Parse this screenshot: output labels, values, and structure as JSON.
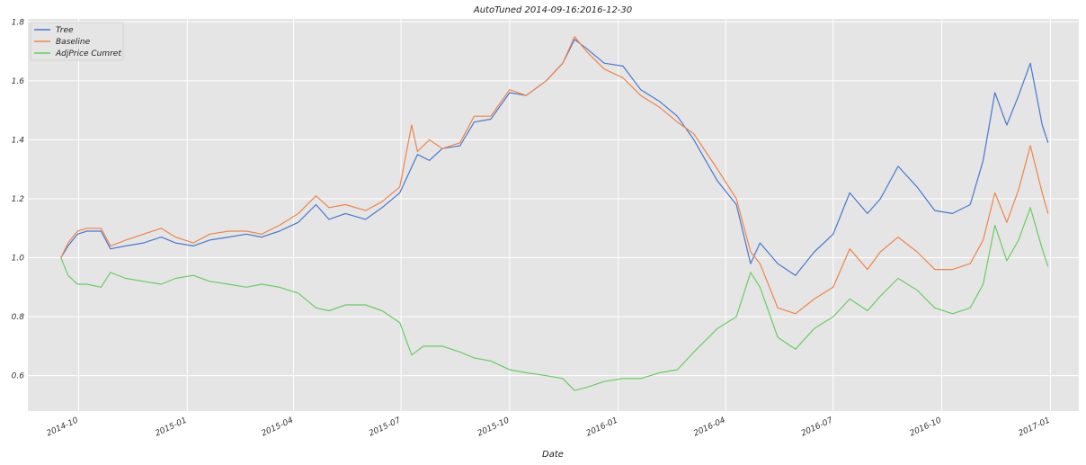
{
  "chart_data": {
    "type": "line",
    "title": "AutoTuned 2014-09-16:2016-12-30",
    "xlabel": "Date",
    "ylabel": "",
    "x_range": [
      "2014-08-19",
      "2017-01-25"
    ],
    "ylim": [
      0.48,
      1.81
    ],
    "grid": true,
    "legend_position": "top-left",
    "x_ticks": [
      "2014-10",
      "2015-01",
      "2015-04",
      "2015-07",
      "2015-10",
      "2016-01",
      "2016-04",
      "2016-07",
      "2016-10",
      "2017-01"
    ],
    "y_ticks": [
      0.6,
      0.8,
      1.0,
      1.2,
      1.4,
      1.6,
      1.8
    ],
    "series": [
      {
        "name": "Tree",
        "color": "#4878cf",
        "points": [
          [
            "2014-09-16",
            1.0
          ],
          [
            "2014-09-22",
            1.04
          ],
          [
            "2014-09-30",
            1.08
          ],
          [
            "2014-10-08",
            1.09
          ],
          [
            "2014-10-20",
            1.09
          ],
          [
            "2014-10-28",
            1.03
          ],
          [
            "2014-11-10",
            1.04
          ],
          [
            "2014-11-25",
            1.05
          ],
          [
            "2014-12-10",
            1.07
          ],
          [
            "2014-12-22",
            1.05
          ],
          [
            "2015-01-06",
            1.04
          ],
          [
            "2015-01-20",
            1.06
          ],
          [
            "2015-02-05",
            1.07
          ],
          [
            "2015-02-20",
            1.08
          ],
          [
            "2015-03-05",
            1.07
          ],
          [
            "2015-03-20",
            1.09
          ],
          [
            "2015-04-05",
            1.12
          ],
          [
            "2015-04-20",
            1.18
          ],
          [
            "2015-05-01",
            1.13
          ],
          [
            "2015-05-15",
            1.15
          ],
          [
            "2015-06-01",
            1.13
          ],
          [
            "2015-06-15",
            1.17
          ],
          [
            "2015-06-30",
            1.22
          ],
          [
            "2015-07-15",
            1.35
          ],
          [
            "2015-07-25",
            1.33
          ],
          [
            "2015-08-05",
            1.37
          ],
          [
            "2015-08-20",
            1.38
          ],
          [
            "2015-09-01",
            1.46
          ],
          [
            "2015-09-15",
            1.47
          ],
          [
            "2015-10-01",
            1.56
          ],
          [
            "2015-10-15",
            1.55
          ],
          [
            "2015-11-01",
            1.6
          ],
          [
            "2015-11-15",
            1.66
          ],
          [
            "2015-11-25",
            1.74
          ],
          [
            "2015-12-05",
            1.71
          ],
          [
            "2015-12-20",
            1.66
          ],
          [
            "2016-01-05",
            1.65
          ],
          [
            "2016-01-20",
            1.57
          ],
          [
            "2016-02-05",
            1.53
          ],
          [
            "2016-02-20",
            1.48
          ],
          [
            "2016-03-05",
            1.4
          ],
          [
            "2016-03-15",
            1.33
          ],
          [
            "2016-03-25",
            1.26
          ],
          [
            "2016-04-10",
            1.18
          ],
          [
            "2016-04-22",
            0.98
          ],
          [
            "2016-04-30",
            1.05
          ],
          [
            "2016-05-15",
            0.98
          ],
          [
            "2016-05-30",
            0.94
          ],
          [
            "2016-06-15",
            1.02
          ],
          [
            "2016-07-01",
            1.08
          ],
          [
            "2016-07-15",
            1.22
          ],
          [
            "2016-07-30",
            1.15
          ],
          [
            "2016-08-10",
            1.2
          ],
          [
            "2016-08-25",
            1.31
          ],
          [
            "2016-09-10",
            1.24
          ],
          [
            "2016-09-25",
            1.16
          ],
          [
            "2016-10-10",
            1.15
          ],
          [
            "2016-10-25",
            1.18
          ],
          [
            "2016-11-05",
            1.33
          ],
          [
            "2016-11-15",
            1.56
          ],
          [
            "2016-11-25",
            1.45
          ],
          [
            "2016-12-05",
            1.55
          ],
          [
            "2016-12-15",
            1.66
          ],
          [
            "2016-12-25",
            1.45
          ],
          [
            "2016-12-30",
            1.39
          ]
        ]
      },
      {
        "name": "Baseline",
        "color": "#ee854a",
        "points": [
          [
            "2014-09-16",
            1.0
          ],
          [
            "2014-09-22",
            1.05
          ],
          [
            "2014-09-30",
            1.09
          ],
          [
            "2014-10-08",
            1.1
          ],
          [
            "2014-10-20",
            1.1
          ],
          [
            "2014-10-28",
            1.04
          ],
          [
            "2014-11-10",
            1.06
          ],
          [
            "2014-11-25",
            1.08
          ],
          [
            "2014-12-10",
            1.1
          ],
          [
            "2014-12-22",
            1.07
          ],
          [
            "2015-01-06",
            1.05
          ],
          [
            "2015-01-20",
            1.08
          ],
          [
            "2015-02-05",
            1.09
          ],
          [
            "2015-02-20",
            1.09
          ],
          [
            "2015-03-05",
            1.08
          ],
          [
            "2015-03-20",
            1.11
          ],
          [
            "2015-04-05",
            1.15
          ],
          [
            "2015-04-20",
            1.21
          ],
          [
            "2015-05-01",
            1.17
          ],
          [
            "2015-05-15",
            1.18
          ],
          [
            "2015-06-01",
            1.16
          ],
          [
            "2015-06-15",
            1.19
          ],
          [
            "2015-06-30",
            1.24
          ],
          [
            "2015-07-10",
            1.45
          ],
          [
            "2015-07-15",
            1.36
          ],
          [
            "2015-07-25",
            1.4
          ],
          [
            "2015-08-05",
            1.37
          ],
          [
            "2015-08-20",
            1.39
          ],
          [
            "2015-09-01",
            1.48
          ],
          [
            "2015-09-15",
            1.48
          ],
          [
            "2015-10-01",
            1.57
          ],
          [
            "2015-10-15",
            1.55
          ],
          [
            "2015-11-01",
            1.6
          ],
          [
            "2015-11-15",
            1.66
          ],
          [
            "2015-11-25",
            1.75
          ],
          [
            "2015-12-05",
            1.7
          ],
          [
            "2015-12-20",
            1.64
          ],
          [
            "2016-01-05",
            1.61
          ],
          [
            "2016-01-20",
            1.55
          ],
          [
            "2016-02-05",
            1.51
          ],
          [
            "2016-02-20",
            1.46
          ],
          [
            "2016-03-05",
            1.42
          ],
          [
            "2016-03-15",
            1.36
          ],
          [
            "2016-03-25",
            1.3
          ],
          [
            "2016-04-10",
            1.2
          ],
          [
            "2016-04-22",
            1.02
          ],
          [
            "2016-04-30",
            0.98
          ],
          [
            "2016-05-15",
            0.83
          ],
          [
            "2016-05-30",
            0.81
          ],
          [
            "2016-06-15",
            0.86
          ],
          [
            "2016-07-01",
            0.9
          ],
          [
            "2016-07-15",
            1.03
          ],
          [
            "2016-07-30",
            0.96
          ],
          [
            "2016-08-10",
            1.02
          ],
          [
            "2016-08-25",
            1.07
          ],
          [
            "2016-09-10",
            1.02
          ],
          [
            "2016-09-25",
            0.96
          ],
          [
            "2016-10-10",
            0.96
          ],
          [
            "2016-10-25",
            0.98
          ],
          [
            "2016-11-05",
            1.06
          ],
          [
            "2016-11-15",
            1.22
          ],
          [
            "2016-11-25",
            1.12
          ],
          [
            "2016-12-05",
            1.23
          ],
          [
            "2016-12-15",
            1.38
          ],
          [
            "2016-12-25",
            1.22
          ],
          [
            "2016-12-30",
            1.15
          ]
        ]
      },
      {
        "name": "AdjPrice Cumret",
        "color": "#6acc64",
        "points": [
          [
            "2014-09-16",
            1.0
          ],
          [
            "2014-09-22",
            0.94
          ],
          [
            "2014-09-30",
            0.91
          ],
          [
            "2014-10-08",
            0.91
          ],
          [
            "2014-10-20",
            0.9
          ],
          [
            "2014-10-28",
            0.95
          ],
          [
            "2014-11-10",
            0.93
          ],
          [
            "2014-11-25",
            0.92
          ],
          [
            "2014-12-10",
            0.91
          ],
          [
            "2014-12-22",
            0.93
          ],
          [
            "2015-01-06",
            0.94
          ],
          [
            "2015-01-20",
            0.92
          ],
          [
            "2015-02-05",
            0.91
          ],
          [
            "2015-02-20",
            0.9
          ],
          [
            "2015-03-05",
            0.91
          ],
          [
            "2015-03-20",
            0.9
          ],
          [
            "2015-04-05",
            0.88
          ],
          [
            "2015-04-20",
            0.83
          ],
          [
            "2015-05-01",
            0.82
          ],
          [
            "2015-05-15",
            0.84
          ],
          [
            "2015-06-01",
            0.84
          ],
          [
            "2015-06-15",
            0.82
          ],
          [
            "2015-06-30",
            0.78
          ],
          [
            "2015-07-10",
            0.67
          ],
          [
            "2015-07-20",
            0.7
          ],
          [
            "2015-08-05",
            0.7
          ],
          [
            "2015-08-20",
            0.68
          ],
          [
            "2015-09-01",
            0.66
          ],
          [
            "2015-09-15",
            0.65
          ],
          [
            "2015-10-01",
            0.62
          ],
          [
            "2015-10-15",
            0.61
          ],
          [
            "2015-11-01",
            0.6
          ],
          [
            "2015-11-15",
            0.59
          ],
          [
            "2015-11-25",
            0.55
          ],
          [
            "2015-12-05",
            0.56
          ],
          [
            "2015-12-20",
            0.58
          ],
          [
            "2016-01-05",
            0.59
          ],
          [
            "2016-01-20",
            0.59
          ],
          [
            "2016-02-05",
            0.61
          ],
          [
            "2016-02-20",
            0.62
          ],
          [
            "2016-03-05",
            0.68
          ],
          [
            "2016-03-15",
            0.72
          ],
          [
            "2016-03-25",
            0.76
          ],
          [
            "2016-04-10",
            0.8
          ],
          [
            "2016-04-22",
            0.95
          ],
          [
            "2016-04-30",
            0.9
          ],
          [
            "2016-05-15",
            0.73
          ],
          [
            "2016-05-30",
            0.69
          ],
          [
            "2016-06-15",
            0.76
          ],
          [
            "2016-07-01",
            0.8
          ],
          [
            "2016-07-15",
            0.86
          ],
          [
            "2016-07-30",
            0.82
          ],
          [
            "2016-08-10",
            0.87
          ],
          [
            "2016-08-25",
            0.93
          ],
          [
            "2016-09-10",
            0.89
          ],
          [
            "2016-09-25",
            0.83
          ],
          [
            "2016-10-10",
            0.81
          ],
          [
            "2016-10-25",
            0.83
          ],
          [
            "2016-11-05",
            0.91
          ],
          [
            "2016-11-15",
            1.11
          ],
          [
            "2016-11-25",
            0.99
          ],
          [
            "2016-12-05",
            1.06
          ],
          [
            "2016-12-15",
            1.17
          ],
          [
            "2016-12-25",
            1.03
          ],
          [
            "2016-12-30",
            0.97
          ]
        ]
      }
    ]
  }
}
